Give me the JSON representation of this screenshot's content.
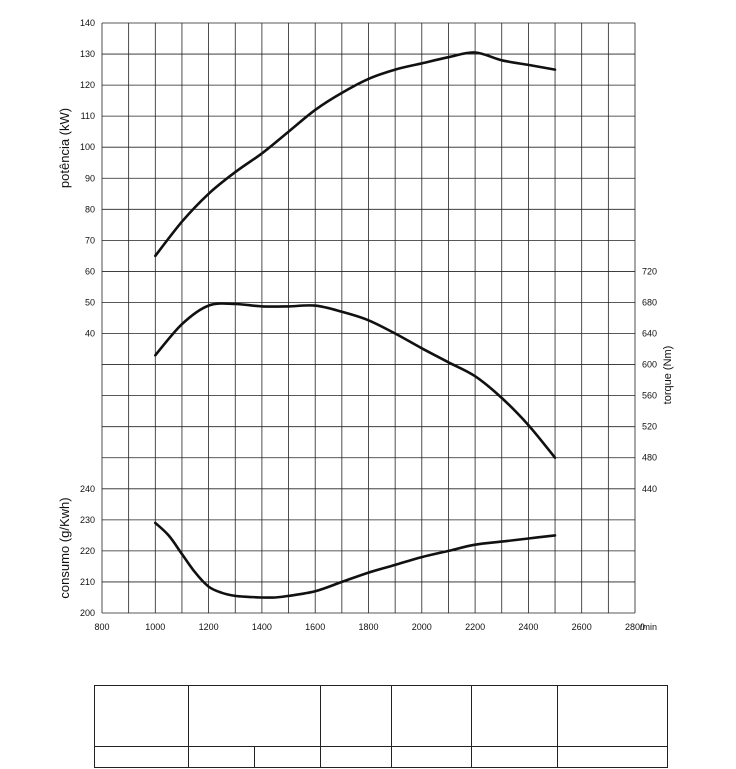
{
  "chart_data": {
    "type": "line",
    "x_unit": "/min",
    "xlim": [
      800,
      2800
    ],
    "x_ticks": [
      800,
      1000,
      1200,
      1400,
      1600,
      1800,
      2000,
      2200,
      2400,
      2600,
      2800
    ],
    "x_tick_labels": [
      "800",
      "1000",
      "1200",
      "1400",
      "1600",
      "1800",
      "2000",
      "2200",
      "2400",
      "2600",
      "2800"
    ],
    "grid": true,
    "axes": {
      "power": {
        "label": "potência (kW)",
        "side": "left",
        "ticks": [
          40,
          50,
          60,
          70,
          80,
          90,
          100,
          110,
          120,
          130,
          140
        ],
        "tick_labels": [
          "40",
          "50",
          "60",
          "70",
          "80",
          "90",
          "100",
          "110",
          "120",
          "130",
          "140"
        ]
      },
      "torque": {
        "label": "torque (Nm)",
        "side": "right",
        "ticks": [
          440,
          480,
          520,
          560,
          600,
          640,
          680,
          720
        ],
        "tick_labels": [
          "440",
          "480",
          "520",
          "560",
          "600",
          "640",
          "680",
          "720"
        ]
      },
      "consumption": {
        "label": "consumo (g/Kwh)",
        "side": "left",
        "ticks": [
          200,
          210,
          220,
          230,
          240
        ],
        "tick_labels": [
          "200",
          "210",
          "220",
          "230",
          "240"
        ]
      }
    },
    "series": [
      {
        "axis": "power",
        "x": [
          1000,
          1100,
          1200,
          1300,
          1400,
          1500,
          1600,
          1700,
          1800,
          1900,
          2000,
          2100,
          2200,
          2300,
          2400,
          2500
        ],
        "values": [
          65,
          76,
          85,
          92,
          98,
          105,
          112,
          117.5,
          122,
          125,
          127,
          129,
          130.5,
          128,
          126.5,
          125
        ]
      },
      {
        "axis": "torque",
        "x": [
          1000,
          1100,
          1200,
          1300,
          1400,
          1500,
          1600,
          1700,
          1800,
          1900,
          2000,
          2100,
          2200,
          2300,
          2400,
          2500
        ],
        "values": [
          612,
          652,
          676,
          678,
          675,
          675,
          676,
          668,
          657,
          640,
          621,
          603,
          585,
          557,
          522,
          480
        ]
      },
      {
        "axis": "consumption",
        "x": [
          1000,
          1050,
          1100,
          1150,
          1200,
          1250,
          1300,
          1350,
          1400,
          1450,
          1500,
          1600,
          1700,
          1800,
          1900,
          2000,
          2100,
          2200,
          2300,
          2400,
          2500
        ],
        "values": [
          229,
          225,
          219,
          213,
          208.5,
          206.5,
          205.5,
          205.2,
          205,
          205,
          205.5,
          207,
          210,
          213,
          215.5,
          218,
          220,
          222,
          223,
          224,
          225
        ]
      }
    ]
  }
}
